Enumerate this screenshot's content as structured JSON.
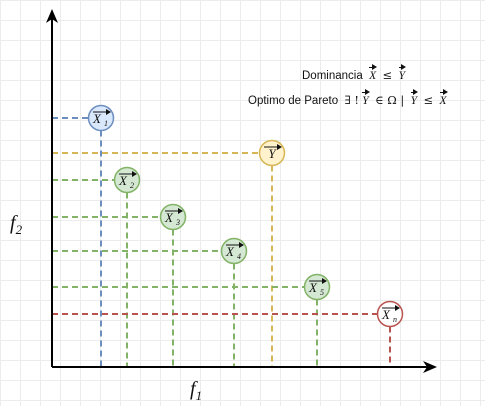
{
  "axes": {
    "x_label": "f",
    "x_sub": "1",
    "y_label": "f",
    "y_sub": "2"
  },
  "definitions": {
    "dominance_text": "Dominancia",
    "dominance_formula": {
      "left": "X",
      "op": "≤",
      "right": "Y"
    },
    "pareto_text": "Optimo de Pareto",
    "pareto_formula": {
      "exists": "∃ !",
      "var": "Y",
      "in": "∈ Ω |",
      "left": "Y",
      "op": "≤",
      "right": "X"
    }
  },
  "colors": {
    "blue_fill": "#dae8fc",
    "blue_stroke": "#6c8ebf",
    "green_fill": "#d5e8d4",
    "green_stroke": "#82b366",
    "yellow_fill": "#fff2cc",
    "yellow_stroke": "#d6b656",
    "red_fill": "#ffffff",
    "red_stroke": "#b85450",
    "axis": "#000000"
  },
  "points": [
    {
      "id": "x1",
      "letter": "X",
      "sub": "1",
      "color": "blue"
    },
    {
      "id": "y",
      "letter": "Y",
      "sub": "",
      "color": "yellow"
    },
    {
      "id": "x2",
      "letter": "X",
      "sub": "2",
      "color": "green"
    },
    {
      "id": "x3",
      "letter": "X",
      "sub": "3",
      "color": "green"
    },
    {
      "id": "x4",
      "letter": "X",
      "sub": "4",
      "color": "green"
    },
    {
      "id": "x5",
      "letter": "X",
      "sub": "5",
      "color": "green"
    },
    {
      "id": "xn",
      "letter": "X",
      "sub": "n",
      "color": "red"
    }
  ]
}
